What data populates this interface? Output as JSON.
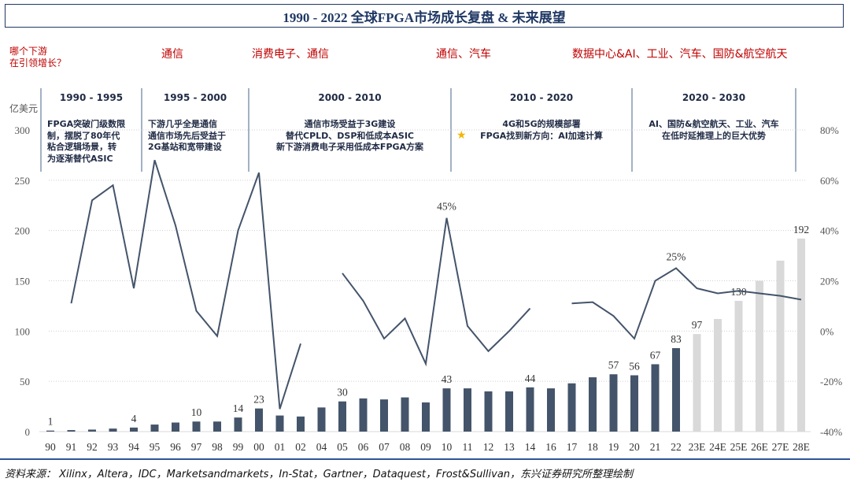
{
  "title": "1990 - 2022 全球FPGA市场成长复盘 & 未来展望",
  "question": "哪个下游\n在引领增长？",
  "sectors": [
    "通信",
    "消费电子、通信",
    "通信、汽车",
    "数据中心&AI、工业、汽车、国防&航空航天"
  ],
  "periods": [
    {
      "label": "1990 - 1995",
      "desc": "FPGA突破门级数限\n制，摆脱了80年代\n粘合逻辑场景，转\n为逐渐替代ASIC"
    },
    {
      "label": "1995 - 2000",
      "desc": "下游几乎全是通信\n通信市场先后受益于\n2G基站和宽带建设"
    },
    {
      "label": "2000 - 2010",
      "desc": "通信市场受益于3G建设\n替代CPLD、DSP和低成本ASIC\n新下游消费电子采用低成本FPGA方案"
    },
    {
      "label": "2010 - 2020",
      "desc": "4G和5G的规模部署\nFPGA找到新方向：AI加速计算",
      "icon": "star-icon"
    },
    {
      "label": "2020 - 2030",
      "desc": "AI、国防&航空航天、工业、汽车\n在低时延推理上的巨大优势"
    }
  ],
  "footer": "资料来源： Xilinx，Altera，IDC，Marketsandmarkets，In-Stat，Gartner，Dataquest，Frost&Sullivan，东兴证券研究所整理绘制",
  "colors": {
    "actual_bar": "#44546a",
    "forecast_bar": "#d9d9d9",
    "line": "#44546a",
    "accent": "#c00000",
    "title": "#1f3864"
  },
  "chart_data": {
    "type": "bar+line",
    "ylabel": "亿美元",
    "ylim": [
      0,
      300
    ],
    "yticks": [
      0,
      50,
      100,
      150,
      200,
      250,
      300
    ],
    "y2lim": [
      -40,
      80
    ],
    "y2ticks": [
      "-40%",
      "-20%",
      "0%",
      "20%",
      "40%",
      "60%",
      "80%"
    ],
    "categories": [
      "90",
      "91",
      "92",
      "93",
      "94",
      "95",
      "96",
      "97",
      "98",
      "99",
      "00",
      "01",
      "02",
      "04",
      "05",
      "06",
      "07",
      "08",
      "09",
      "10",
      "11",
      "12",
      "13",
      "14",
      "16",
      "17",
      "18",
      "19",
      "20",
      "21",
      "22",
      "23E",
      "24E",
      "25E",
      "26E",
      "27E",
      "28E"
    ],
    "bar_values": [
      1,
      1.5,
      2,
      3,
      4,
      7,
      9,
      10,
      10,
      14,
      23,
      16,
      15,
      24,
      30,
      33,
      32,
      34,
      29,
      43,
      43,
      40,
      40,
      44,
      43,
      48,
      54,
      57,
      56,
      67,
      83,
      97,
      112,
      130,
      150,
      170,
      192
    ],
    "forecast_from": "23E",
    "bar_labels": {
      "90": "1",
      "94": "4",
      "97": "10",
      "99": "14",
      "00": "23",
      "05": "30",
      "10": "43",
      "14": "44",
      "19": "57",
      "20": "56",
      "21": "67",
      "22": "83",
      "23E": "97",
      "25E": "130",
      "28E": "192"
    },
    "growth_pct": [
      null,
      11,
      52,
      58,
      17,
      68,
      42,
      8,
      -2,
      40,
      63,
      -31,
      -5,
      null,
      23,
      12,
      -3,
      5,
      -13,
      45,
      2,
      -8,
      0,
      9,
      null,
      11,
      11.5,
      6,
      -3,
      20,
      25,
      17,
      15,
      16,
      15,
      14,
      12.5
    ],
    "line_labels": {
      "10": "45%",
      "22": "25%"
    }
  }
}
